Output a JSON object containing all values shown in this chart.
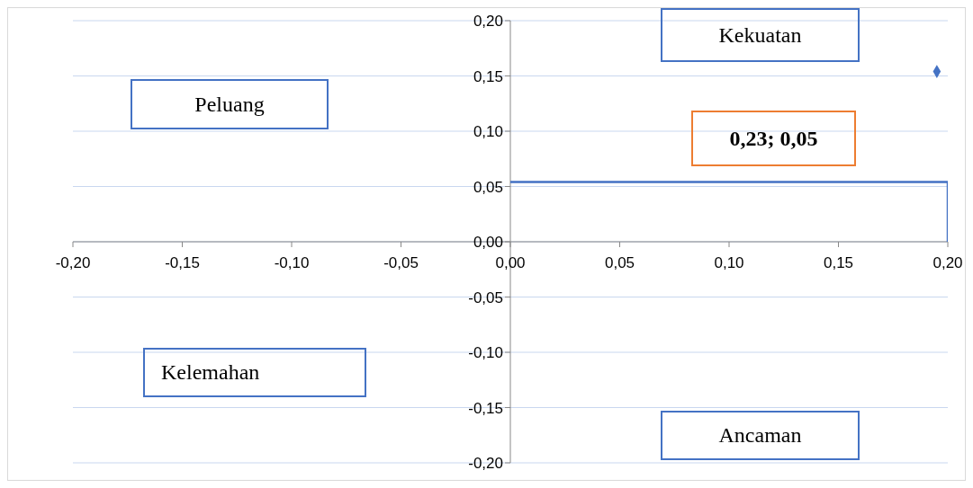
{
  "chart_data": {
    "type": "scatter",
    "series": [
      {
        "type": "line",
        "color": "#4472c4",
        "x": [
          0,
          0.2,
          0.2
        ],
        "values": [
          0.054,
          0.054,
          0
        ]
      },
      {
        "color": "#4472c4",
        "marker": "diamond",
        "x": [
          0.195
        ],
        "values": [
          0.154
        ]
      }
    ],
    "xlim": [
      -0.2,
      0.2
    ],
    "xticks": [
      {
        "value": -0.2,
        "label": "-0,20"
      },
      {
        "value": -0.15,
        "label": "-0,15"
      },
      {
        "value": -0.1,
        "label": "-0,10"
      },
      {
        "value": -0.05,
        "label": "-0,05"
      },
      {
        "value": 0,
        "label": "0,00"
      },
      {
        "value": 0.05,
        "label": "0,05"
      },
      {
        "value": 0.1,
        "label": "0,10"
      },
      {
        "value": 0.15,
        "label": "0,15"
      },
      {
        "value": 0.2,
        "label": "0,20"
      }
    ],
    "ylim": [
      -0.2,
      0.2
    ],
    "yticks": [
      {
        "value": -0.2,
        "label": "-0,20"
      },
      {
        "value": -0.15,
        "label": "-0,15"
      },
      {
        "value": -0.1,
        "label": "-0,10"
      },
      {
        "value": -0.05,
        "label": "-0,05"
      },
      {
        "value": 0,
        "label": "0,00"
      },
      {
        "value": 0.05,
        "label": "0,05"
      },
      {
        "value": 0.1,
        "label": "0,10"
      },
      {
        "value": 0.15,
        "label": "0,15"
      },
      {
        "value": 0.2,
        "label": "0,20"
      }
    ],
    "grid": "y",
    "annotations": [
      "Kekuatan",
      "Peluang",
      "Kelemahan",
      "Ancaman",
      "0,23; 0,05"
    ]
  }
}
